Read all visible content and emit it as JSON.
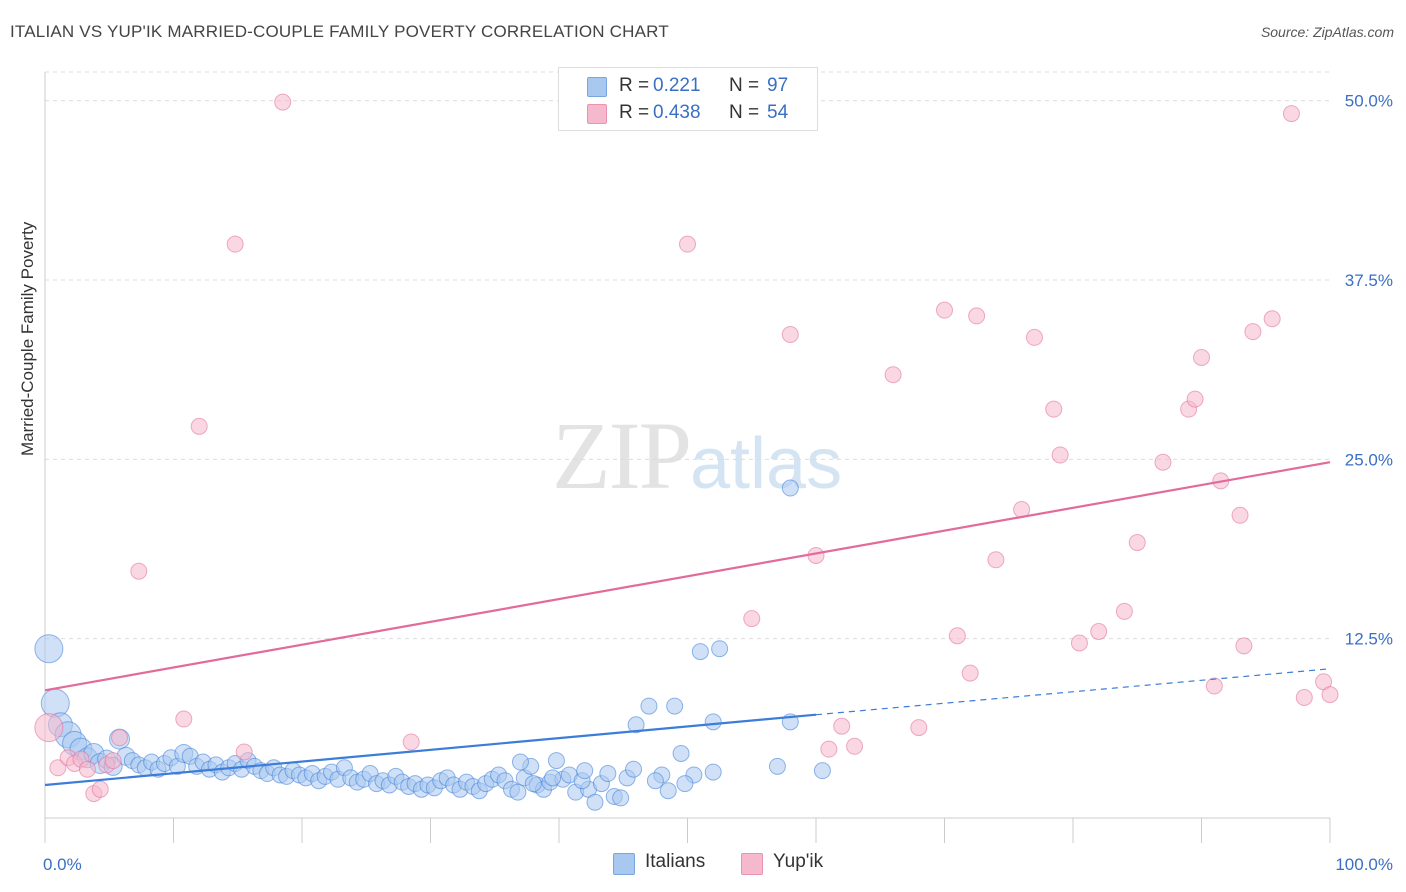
{
  "title": "ITALIAN VS YUP'IK MARRIED-COUPLE FAMILY POVERTY CORRELATION CHART",
  "source": "Source: ZipAtlas.com",
  "watermark": {
    "zip": "ZIP",
    "atlas": "atlas"
  },
  "legend": {
    "italians": {
      "r_label": "R =",
      "r_value": "0.221",
      "n_label": "N =",
      "n_value": "97"
    },
    "yupik": {
      "r_label": "R =",
      "r_value": "0.438",
      "n_label": "N =",
      "n_value": "54"
    }
  },
  "chart_data": {
    "type": "scatter",
    "title": "ITALIAN VS YUP'IK MARRIED-COUPLE FAMILY POVERTY CORRELATION CHART",
    "xlabel": "",
    "ylabel": "Married-Couple Family Poverty",
    "xlim": [
      0,
      100
    ],
    "ylim": [
      0,
      52
    ],
    "x_tick_labels": [
      "0.0%",
      "100.0%"
    ],
    "y_ticks": [
      12.5,
      25.0,
      37.5,
      50.0
    ],
    "y_tick_labels": [
      "12.5%",
      "25.0%",
      "37.5%",
      "50.0%"
    ],
    "grid": true,
    "colors": {
      "italians": "#3b7dd8",
      "yupik": "#e26b99",
      "italians_fill": "#a9c8f0",
      "yupik_fill": "#f5b8cc"
    },
    "series": [
      {
        "name": "Italians",
        "points": [
          [
            0.3,
            11.8,
            14
          ],
          [
            0.8,
            8.0,
            14
          ],
          [
            1.2,
            6.5,
            12
          ],
          [
            1.8,
            5.8,
            13
          ],
          [
            2.3,
            5.2,
            12
          ],
          [
            2.8,
            4.8,
            11
          ],
          [
            3.3,
            4.2,
            10
          ],
          [
            3.8,
            4.5,
            10
          ],
          [
            4.3,
            3.8,
            10
          ],
          [
            4.8,
            4.1,
            9
          ],
          [
            5.3,
            3.6,
            9
          ],
          [
            5.8,
            5.5,
            10
          ],
          [
            6.3,
            4.3,
            9
          ],
          [
            6.8,
            4.0,
            8
          ],
          [
            7.3,
            3.7,
            8
          ],
          [
            7.8,
            3.5,
            8
          ],
          [
            8.3,
            3.9,
            8
          ],
          [
            8.8,
            3.4,
            8
          ],
          [
            9.3,
            3.8,
            8
          ],
          [
            9.8,
            4.2,
            8
          ],
          [
            10.3,
            3.6,
            8
          ],
          [
            10.8,
            4.5,
            9
          ],
          [
            11.3,
            4.3,
            8
          ],
          [
            11.8,
            3.6,
            8
          ],
          [
            12.3,
            3.9,
            8
          ],
          [
            12.8,
            3.4,
            8
          ],
          [
            13.3,
            3.7,
            8
          ],
          [
            13.8,
            3.2,
            8
          ],
          [
            14.3,
            3.5,
            8
          ],
          [
            14.8,
            3.8,
            8
          ],
          [
            15.3,
            3.4,
            8
          ],
          [
            15.8,
            4.0,
            8
          ],
          [
            16.3,
            3.6,
            8
          ],
          [
            16.8,
            3.3,
            8
          ],
          [
            17.3,
            3.1,
            8
          ],
          [
            17.8,
            3.5,
            8
          ],
          [
            18.3,
            3.0,
            8
          ],
          [
            18.8,
            2.9,
            8
          ],
          [
            19.3,
            3.3,
            8
          ],
          [
            19.8,
            3.0,
            8
          ],
          [
            20.3,
            2.8,
            8
          ],
          [
            20.8,
            3.1,
            8
          ],
          [
            21.3,
            2.6,
            8
          ],
          [
            21.8,
            2.9,
            8
          ],
          [
            22.3,
            3.2,
            8
          ],
          [
            22.8,
            2.7,
            8
          ],
          [
            23.3,
            3.5,
            8
          ],
          [
            23.8,
            2.8,
            8
          ],
          [
            24.3,
            2.5,
            8
          ],
          [
            24.8,
            2.7,
            8
          ],
          [
            25.3,
            3.1,
            8
          ],
          [
            25.8,
            2.4,
            8
          ],
          [
            26.3,
            2.6,
            8
          ],
          [
            26.8,
            2.3,
            8
          ],
          [
            27.3,
            2.9,
            8
          ],
          [
            27.8,
            2.5,
            8
          ],
          [
            28.3,
            2.2,
            8
          ],
          [
            28.8,
            2.4,
            8
          ],
          [
            29.3,
            2.0,
            8
          ],
          [
            29.8,
            2.3,
            8
          ],
          [
            30.3,
            2.1,
            8
          ],
          [
            30.8,
            2.6,
            8
          ],
          [
            31.3,
            2.8,
            8
          ],
          [
            31.8,
            2.3,
            8
          ],
          [
            32.3,
            2.0,
            8
          ],
          [
            32.8,
            2.5,
            8
          ],
          [
            33.3,
            2.2,
            8
          ],
          [
            33.8,
            1.9,
            8
          ],
          [
            34.3,
            2.4,
            8
          ],
          [
            34.8,
            2.7,
            8
          ],
          [
            35.3,
            3.0,
            8
          ],
          [
            35.8,
            2.6,
            8
          ],
          [
            36.3,
            2.0,
            8
          ],
          [
            36.8,
            1.8,
            8
          ],
          [
            37.3,
            2.8,
            8
          ],
          [
            37.8,
            3.6,
            8
          ],
          [
            38.3,
            2.3,
            8
          ],
          [
            38.8,
            2.0,
            8
          ],
          [
            39.3,
            2.5,
            8
          ],
          [
            39.8,
            4.0,
            8
          ],
          [
            40.3,
            2.7,
            8
          ],
          [
            40.8,
            3.0,
            8
          ],
          [
            41.3,
            1.8,
            8
          ],
          [
            42.3,
            2.0,
            8
          ],
          [
            37.0,
            3.9,
            8
          ],
          [
            42.8,
            1.1,
            8
          ],
          [
            43.3,
            2.4,
            8
          ],
          [
            43.8,
            3.1,
            8
          ],
          [
            44.3,
            1.5,
            8
          ],
          [
            39.5,
            2.8,
            8
          ],
          [
            41.8,
            2.6,
            8
          ],
          [
            44.8,
            1.4,
            8
          ],
          [
            45.3,
            2.8,
            8
          ],
          [
            42.0,
            3.3,
            8
          ],
          [
            38.0,
            2.4,
            8
          ],
          [
            45.8,
            3.4,
            8
          ],
          [
            46.0,
            6.5,
            8
          ],
          [
            47.0,
            7.8,
            8
          ],
          [
            48.0,
            3.0,
            8
          ],
          [
            48.5,
            1.9,
            8
          ],
          [
            47.5,
            2.6,
            8
          ],
          [
            49.0,
            7.8,
            8
          ],
          [
            49.5,
            4.5,
            8
          ],
          [
            50.5,
            3.0,
            8
          ],
          [
            51.0,
            11.6,
            8
          ],
          [
            52.5,
            11.8,
            8
          ],
          [
            52.0,
            6.7,
            8
          ],
          [
            49.8,
            2.4,
            8
          ],
          [
            52.0,
            3.2,
            8
          ],
          [
            58.0,
            6.7,
            8
          ],
          [
            57.0,
            3.6,
            8
          ],
          [
            60.5,
            3.3,
            8
          ],
          [
            58.0,
            23.0,
            8
          ]
        ]
      },
      {
        "name": "Yup'ik",
        "points": [
          [
            0.3,
            6.3,
            14
          ],
          [
            1.0,
            3.5,
            8
          ],
          [
            1.8,
            4.2,
            8
          ],
          [
            2.3,
            3.8,
            8
          ],
          [
            2.8,
            4.1,
            8
          ],
          [
            3.3,
            3.4,
            8
          ],
          [
            3.8,
            1.7,
            8
          ],
          [
            4.3,
            2.0,
            8
          ],
          [
            4.8,
            3.7,
            8
          ],
          [
            5.3,
            4.0,
            8
          ],
          [
            5.8,
            5.6,
            8
          ],
          [
            7.3,
            17.2,
            8
          ],
          [
            10.8,
            6.9,
            8
          ],
          [
            12.0,
            27.3,
            8
          ],
          [
            14.8,
            40.0,
            8
          ],
          [
            15.5,
            4.6,
            8
          ],
          [
            18.5,
            49.9,
            8
          ],
          [
            28.5,
            5.3,
            8
          ],
          [
            50.0,
            40.0,
            8
          ],
          [
            55.0,
            13.9,
            8
          ],
          [
            58.0,
            33.7,
            8
          ],
          [
            60.0,
            18.3,
            8
          ],
          [
            61.0,
            4.8,
            8
          ],
          [
            63.0,
            5.0,
            8
          ],
          [
            62.0,
            6.4,
            8
          ],
          [
            66.0,
            30.9,
            8
          ],
          [
            68.0,
            6.3,
            8
          ],
          [
            70.0,
            35.4,
            8
          ],
          [
            71.0,
            12.7,
            8
          ],
          [
            72.5,
            35.0,
            8
          ],
          [
            72.0,
            10.1,
            8
          ],
          [
            74.0,
            18.0,
            8
          ],
          [
            76.0,
            21.5,
            8
          ],
          [
            77.0,
            33.5,
            8
          ],
          [
            78.5,
            28.5,
            8
          ],
          [
            79.0,
            25.3,
            8
          ],
          [
            80.5,
            12.2,
            8
          ],
          [
            82.0,
            13.0,
            8
          ],
          [
            84.0,
            14.4,
            8
          ],
          [
            85.0,
            19.2,
            8
          ],
          [
            87.0,
            24.8,
            8
          ],
          [
            89.0,
            28.5,
            8
          ],
          [
            89.5,
            29.2,
            8
          ],
          [
            90.0,
            32.1,
            8
          ],
          [
            91.0,
            9.2,
            8
          ],
          [
            91.5,
            23.5,
            8
          ],
          [
            93.0,
            21.1,
            8
          ],
          [
            93.3,
            12.0,
            8
          ],
          [
            94.0,
            33.9,
            8
          ],
          [
            95.5,
            34.8,
            8
          ],
          [
            97.0,
            49.1,
            8
          ],
          [
            98.0,
            8.4,
            8
          ],
          [
            99.5,
            9.5,
            8
          ],
          [
            100.0,
            8.6,
            8
          ]
        ]
      }
    ],
    "trendlines": [
      {
        "series": "Italians",
        "solid": [
          [
            0,
            2.3
          ],
          [
            60,
            7.2
          ]
        ],
        "dashed": [
          [
            60,
            7.2
          ],
          [
            100,
            10.4
          ]
        ]
      },
      {
        "series": "Yup'ik",
        "solid": [
          [
            0,
            8.9
          ],
          [
            100,
            24.8
          ]
        ]
      }
    ]
  },
  "bottom_legend": {
    "italians_label": "Italians",
    "yupik_label": "Yup'ik"
  }
}
